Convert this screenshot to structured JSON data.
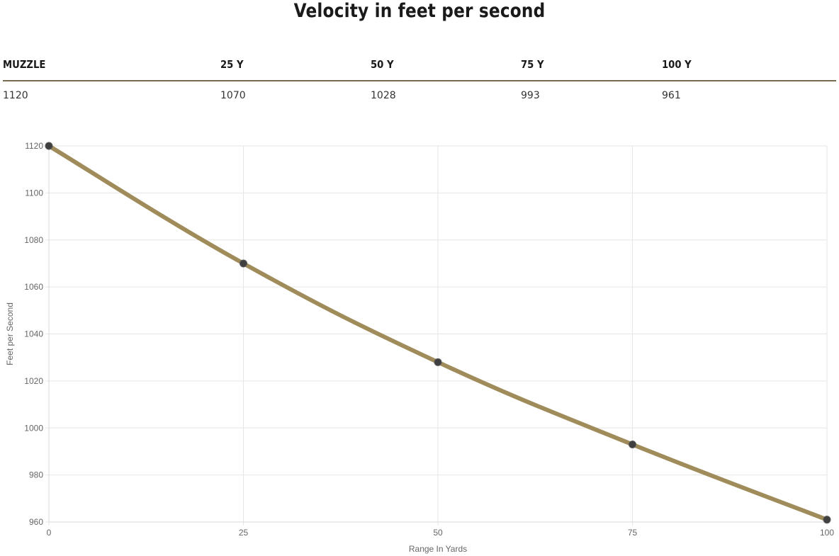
{
  "page": {
    "title": "Velocity in feet per second"
  },
  "table": {
    "headers": [
      "MUZZLE",
      "25 Y",
      "50 Y",
      "75 Y",
      "100 Y"
    ],
    "values": [
      "1120",
      "1070",
      "1028",
      "993",
      "961"
    ]
  },
  "colors": {
    "line": "#a08c5b",
    "point": "#3f3f3f",
    "grid": "#e6e6e6",
    "table_rule": "#7a6a52"
  },
  "chart_data": {
    "type": "line",
    "title": "",
    "xlabel": "Range In Yards",
    "ylabel": "Feet per Second",
    "x": [
      0,
      25,
      50,
      75,
      100
    ],
    "series": [
      {
        "values": [
          1120,
          1070,
          1028,
          993,
          961
        ]
      }
    ],
    "xlim": [
      0,
      100
    ],
    "ylim": [
      960,
      1120
    ],
    "xticks": [
      0,
      25,
      50,
      75,
      100
    ],
    "yticks": [
      960,
      980,
      1000,
      1020,
      1040,
      1060,
      1080,
      1100,
      1120
    ],
    "grid": true,
    "legend": "none",
    "curve": "smooth"
  }
}
